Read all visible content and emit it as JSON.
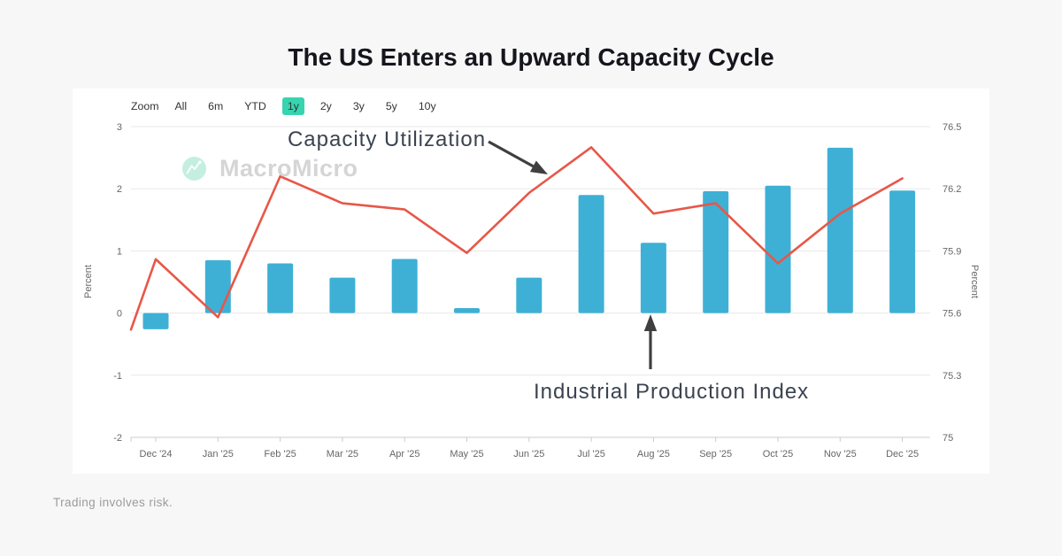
{
  "page": {
    "title": "The US Enters an Upward Capacity Cycle",
    "footer": "Trading involves risk.",
    "background": "#f7f7f7"
  },
  "watermark": {
    "brand": "MacroMicro"
  },
  "toolbar": {
    "zoom_label": "Zoom",
    "options": [
      "All",
      "6m",
      "YTD",
      "1y",
      "2y",
      "3y",
      "5y",
      "10y"
    ],
    "active": "1y",
    "active_color": "#36d5af"
  },
  "annotations": {
    "line_label": "Capacity Utilization",
    "bar_label": "Industrial Production Index"
  },
  "chart_data": {
    "type": "combo",
    "categories": [
      "Dec '24",
      "Jan '25",
      "Feb '25",
      "Mar '25",
      "Apr '25",
      "May '25",
      "Jun '25",
      "Jul '25",
      "Aug '25",
      "Sep '25",
      "Oct '25",
      "Nov '25",
      "Dec '25"
    ],
    "series": [
      {
        "name": "Industrial Production Index",
        "type": "bar",
        "yaxis": "left",
        "color": "#3eb0d5",
        "values": [
          -0.26,
          0.85,
          0.8,
          0.57,
          0.87,
          0.08,
          0.57,
          1.9,
          1.13,
          1.96,
          2.05,
          2.66,
          1.97
        ]
      },
      {
        "name": "Capacity Utilization",
        "type": "line",
        "yaxis": "right",
        "color": "#e85748",
        "values": [
          75.86,
          75.58,
          76.26,
          76.13,
          76.1,
          75.89,
          76.18,
          76.4,
          76.08,
          76.13,
          75.84,
          76.08,
          76.25
        ],
        "lead_in_value": 75.52
      }
    ],
    "yaxis_left": {
      "title": "Percent",
      "tick_labels": [
        "3",
        "2",
        "1",
        "0",
        "-1",
        "-2"
      ],
      "max": 3,
      "min": -2
    },
    "yaxis_right": {
      "title": "Percent",
      "tick_labels": [
        "76.5",
        "76.2",
        "75.9",
        "75.6",
        "75.3",
        "75"
      ],
      "max": 76.5,
      "min": 75
    },
    "grid": true,
    "legend": false
  }
}
